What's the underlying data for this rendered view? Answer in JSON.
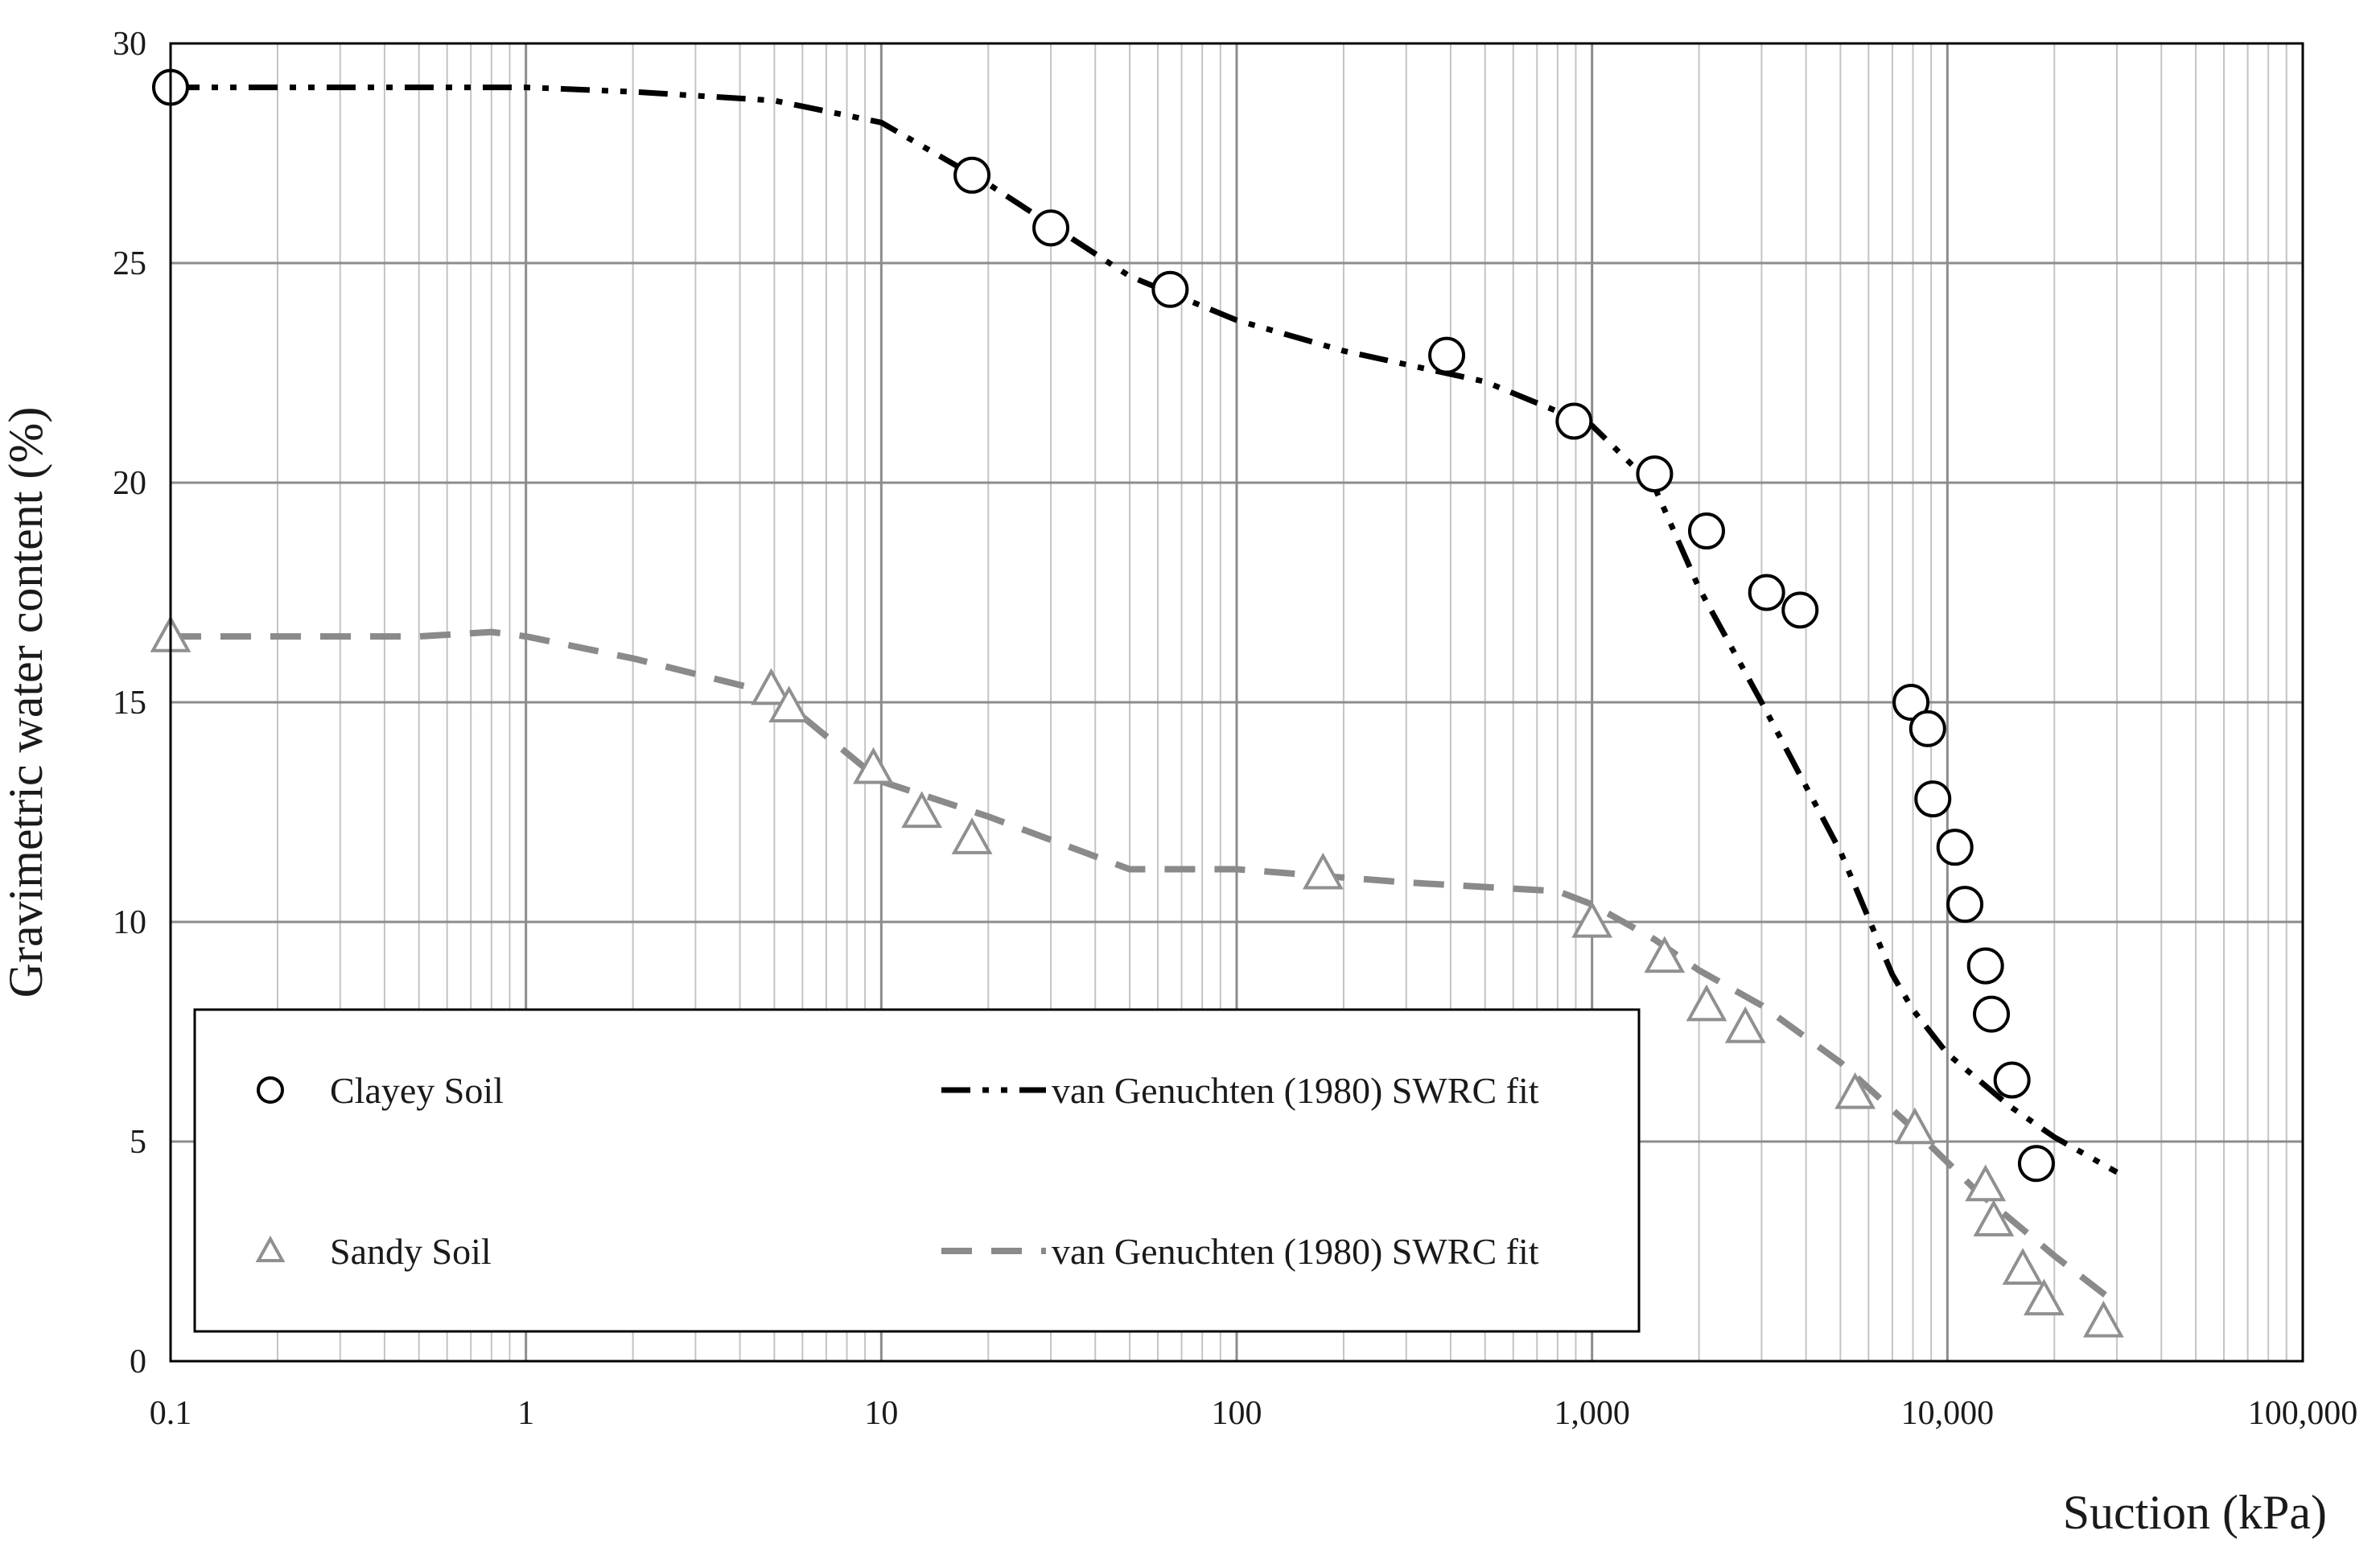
{
  "chart_data": {
    "type": "scatter",
    "x_scale": "log",
    "xlabel": "Suction (kPa)",
    "ylabel": "Gravimetric water content (%)",
    "xlim": [
      0.1,
      100000
    ],
    "ylim": [
      0,
      30
    ],
    "grid": true,
    "x_ticks": [
      {
        "value": 0.1,
        "label": "0.1"
      },
      {
        "value": 1,
        "label": "1"
      },
      {
        "value": 10,
        "label": "10"
      },
      {
        "value": 100,
        "label": "100"
      },
      {
        "value": 1000,
        "label": "1,000"
      },
      {
        "value": 10000,
        "label": "10,000"
      },
      {
        "value": 100000,
        "label": "100,000"
      }
    ],
    "y_ticks": [
      {
        "value": 0,
        "label": "0"
      },
      {
        "value": 5,
        "label": "5"
      },
      {
        "value": 10,
        "label": "10"
      },
      {
        "value": 15,
        "label": "15"
      },
      {
        "value": 20,
        "label": "20"
      },
      {
        "value": 25,
        "label": "25"
      },
      {
        "value": 30,
        "label": "30"
      }
    ],
    "legend_position": "lower-left",
    "series": [
      {
        "name": "Clayey Soil",
        "kind": "points",
        "marker": "circle",
        "color": "#000000",
        "x": [
          0.1,
          18,
          30,
          65,
          390,
          890,
          1500,
          2100,
          3100,
          3850,
          7900,
          8800,
          9100,
          10500,
          11200,
          12800,
          13300,
          15200,
          17800
        ],
        "y": [
          29.0,
          27.0,
          25.8,
          24.4,
          22.9,
          21.4,
          20.2,
          18.9,
          17.5,
          17.1,
          15.0,
          14.4,
          12.8,
          11.7,
          10.4,
          9.0,
          7.9,
          6.4,
          4.5
        ]
      },
      {
        "name": "van Genuchten (1980) SWRC fit",
        "kind": "line",
        "dash": "dash-dot-dot",
        "color": "#000000",
        "x": [
          0.1,
          0.5,
          1,
          2,
          5,
          10,
          20,
          50,
          100,
          200,
          500,
          1000,
          1500,
          2000,
          3000,
          5000,
          7000,
          8000,
          10000,
          15000,
          20000,
          30000
        ],
        "y": [
          29.0,
          29.0,
          29.0,
          28.9,
          28.7,
          28.2,
          26.8,
          24.7,
          23.7,
          23.0,
          22.3,
          21.3,
          19.9,
          17.6,
          15.0,
          11.6,
          8.8,
          8.0,
          7.0,
          5.8,
          5.1,
          4.3
        ]
      },
      {
        "name": "Sandy Soil",
        "kind": "points",
        "marker": "triangle",
        "color": "#909090",
        "x": [
          0.1,
          4.9,
          5.5,
          9.5,
          13,
          18,
          175,
          1000,
          1600,
          2100,
          2700,
          5500,
          8100,
          12800,
          13500,
          16300,
          18700,
          27500
        ],
        "y": [
          16.5,
          15.3,
          14.9,
          13.5,
          12.5,
          11.9,
          11.1,
          10.0,
          9.2,
          8.1,
          7.6,
          6.1,
          5.3,
          4.0,
          3.2,
          2.1,
          1.4,
          0.9
        ]
      },
      {
        "name": "van Genuchten (1980) SWRC fit",
        "kind": "line",
        "dash": "dashed",
        "color": "#8a8a8a",
        "x": [
          0.1,
          0.5,
          0.8,
          1,
          2,
          5,
          10,
          20,
          50,
          100,
          300,
          800,
          1000,
          1500,
          2000,
          3000,
          5000,
          8000,
          12000,
          20000,
          30000
        ],
        "y": [
          16.5,
          16.5,
          16.6,
          16.5,
          16.0,
          15.2,
          13.2,
          12.4,
          11.2,
          11.2,
          10.9,
          10.7,
          10.4,
          9.6,
          8.9,
          8.1,
          6.8,
          5.3,
          3.9,
          2.4,
          1.3
        ]
      }
    ]
  }
}
